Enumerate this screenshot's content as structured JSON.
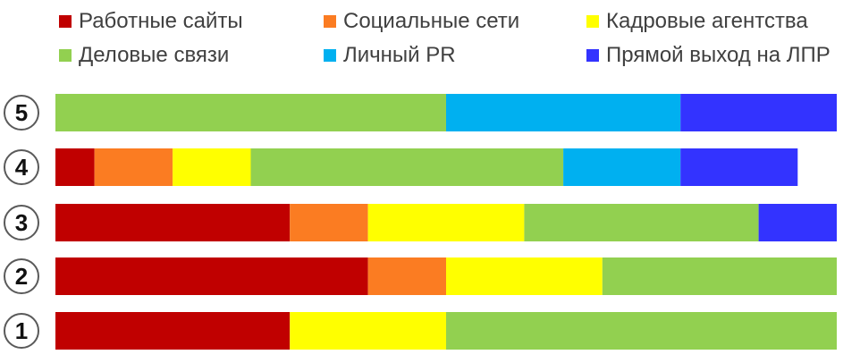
{
  "chart_data": {
    "type": "bar",
    "orientation": "horizontal",
    "stacked": true,
    "legend": "top",
    "categories": [
      "5",
      "4",
      "3",
      "2",
      "1"
    ],
    "series": [
      {
        "name": "Работные сайты",
        "color": "#c00000",
        "values": [
          0,
          5,
          30,
          40,
          30
        ]
      },
      {
        "name": "Социальные сети",
        "color": "#fb7c22",
        "values": [
          0,
          10,
          10,
          10,
          0
        ]
      },
      {
        "name": "Кадровые агентства",
        "color": "#ffff00",
        "values": [
          0,
          10,
          20,
          20,
          20
        ]
      },
      {
        "name": "Деловые связи",
        "color": "#92d050",
        "values": [
          50,
          40,
          30,
          30,
          50
        ]
      },
      {
        "name": "Личный PR",
        "color": "#00b0f0",
        "values": [
          30,
          15,
          0,
          0,
          0
        ]
      },
      {
        "name": "Прямой выход на ЛПР",
        "color": "#3333ff",
        "values": [
          20,
          15,
          10,
          0,
          0
        ]
      }
    ],
    "xlim": [
      0,
      100
    ],
    "grid": false
  }
}
